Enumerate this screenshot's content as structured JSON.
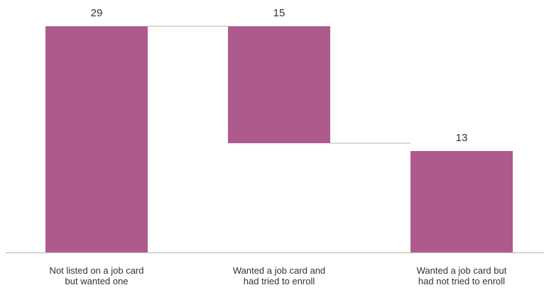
{
  "chart_data": {
    "type": "bar",
    "subtype": "waterfall",
    "categories": [
      [
        "Not listed on a job card",
        "but wanted one"
      ],
      [
        "Wanted a job card and",
        "had tried to enroll"
      ],
      [
        "Wanted a job card but",
        "had not tried to enroll"
      ]
    ],
    "values": [
      29,
      15,
      13
    ],
    "bar_ranges": [
      [
        0,
        29
      ],
      [
        14,
        29
      ],
      [
        0,
        13
      ]
    ],
    "value_labels": [
      "29",
      "15",
      "13"
    ],
    "ylim": [
      0,
      29
    ],
    "grid": false,
    "legend": "none",
    "bar_color": "#AE5A8C",
    "connector_color": "#BFBFBF",
    "axis_color": "#BFBFBF"
  }
}
